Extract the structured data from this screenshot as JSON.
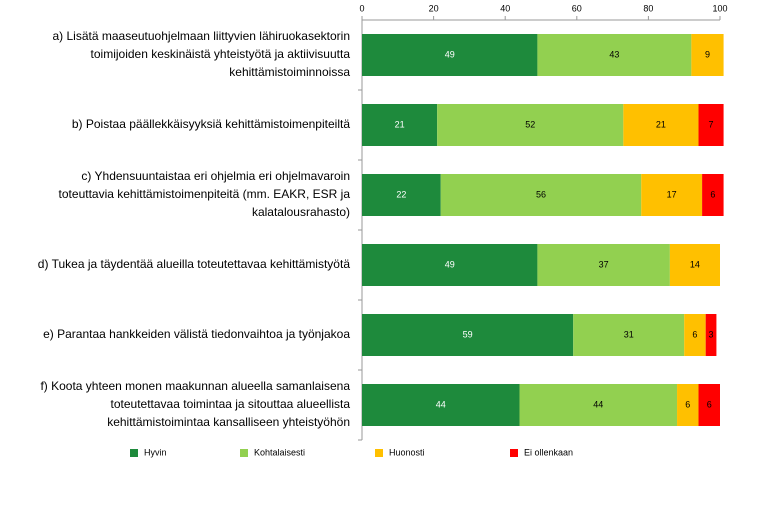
{
  "chart_data": {
    "type": "stacked-bar-horizontal",
    "categories": [
      [
        "a) Lisätä maaseutuohjelmaan liittyvien lähiruokasektorin",
        "toimijoiden keskinäistä yhteistyötä ja aktiivisuutta",
        "kehittämistoiminnoissa"
      ],
      [
        "b) Poistaa päällekkäisyyksiä kehittämistoimenpiteiltä"
      ],
      [
        "c) Yhdensuuntaistaa eri ohjelmia eri ohjelmavaroin",
        "toteuttavia kehittämistoimenpiteitä (mm. EAKR, ESR ja",
        "kalatalousrahasto)"
      ],
      [
        "d) Tukea ja täydentää alueilla toteutettavaa kehittämistyötä"
      ],
      [
        "e) Parantaa hankkeiden välistä tiedonvaihtoa ja työnjakoa"
      ],
      [
        "f) Koota yhteen monen maakunnan alueella samanlaisena",
        "toteutettavaa toimintaa ja sitouttaa alueellista",
        "kehittämistoimintaa kansalliseen yhteistyöhön"
      ]
    ],
    "series": [
      {
        "name": "Hyvin",
        "color": "#1e8a3c",
        "values": [
          49,
          21,
          22,
          49,
          59,
          44
        ]
      },
      {
        "name": "Kohtalaisesti",
        "color": "#92d050",
        "values": [
          43,
          52,
          56,
          37,
          31,
          44
        ]
      },
      {
        "name": "Huonosti",
        "color": "#ffc000",
        "values": [
          9,
          21,
          17,
          14,
          6,
          6
        ]
      },
      {
        "name": "Ei ollenkaan",
        "color": "#ff0000",
        "values": [
          null,
          7,
          6,
          null,
          3,
          6
        ]
      }
    ],
    "xlim": [
      0,
      100
    ],
    "xticks": [
      0,
      20,
      40,
      60,
      80,
      100
    ],
    "legend": "bottom"
  }
}
